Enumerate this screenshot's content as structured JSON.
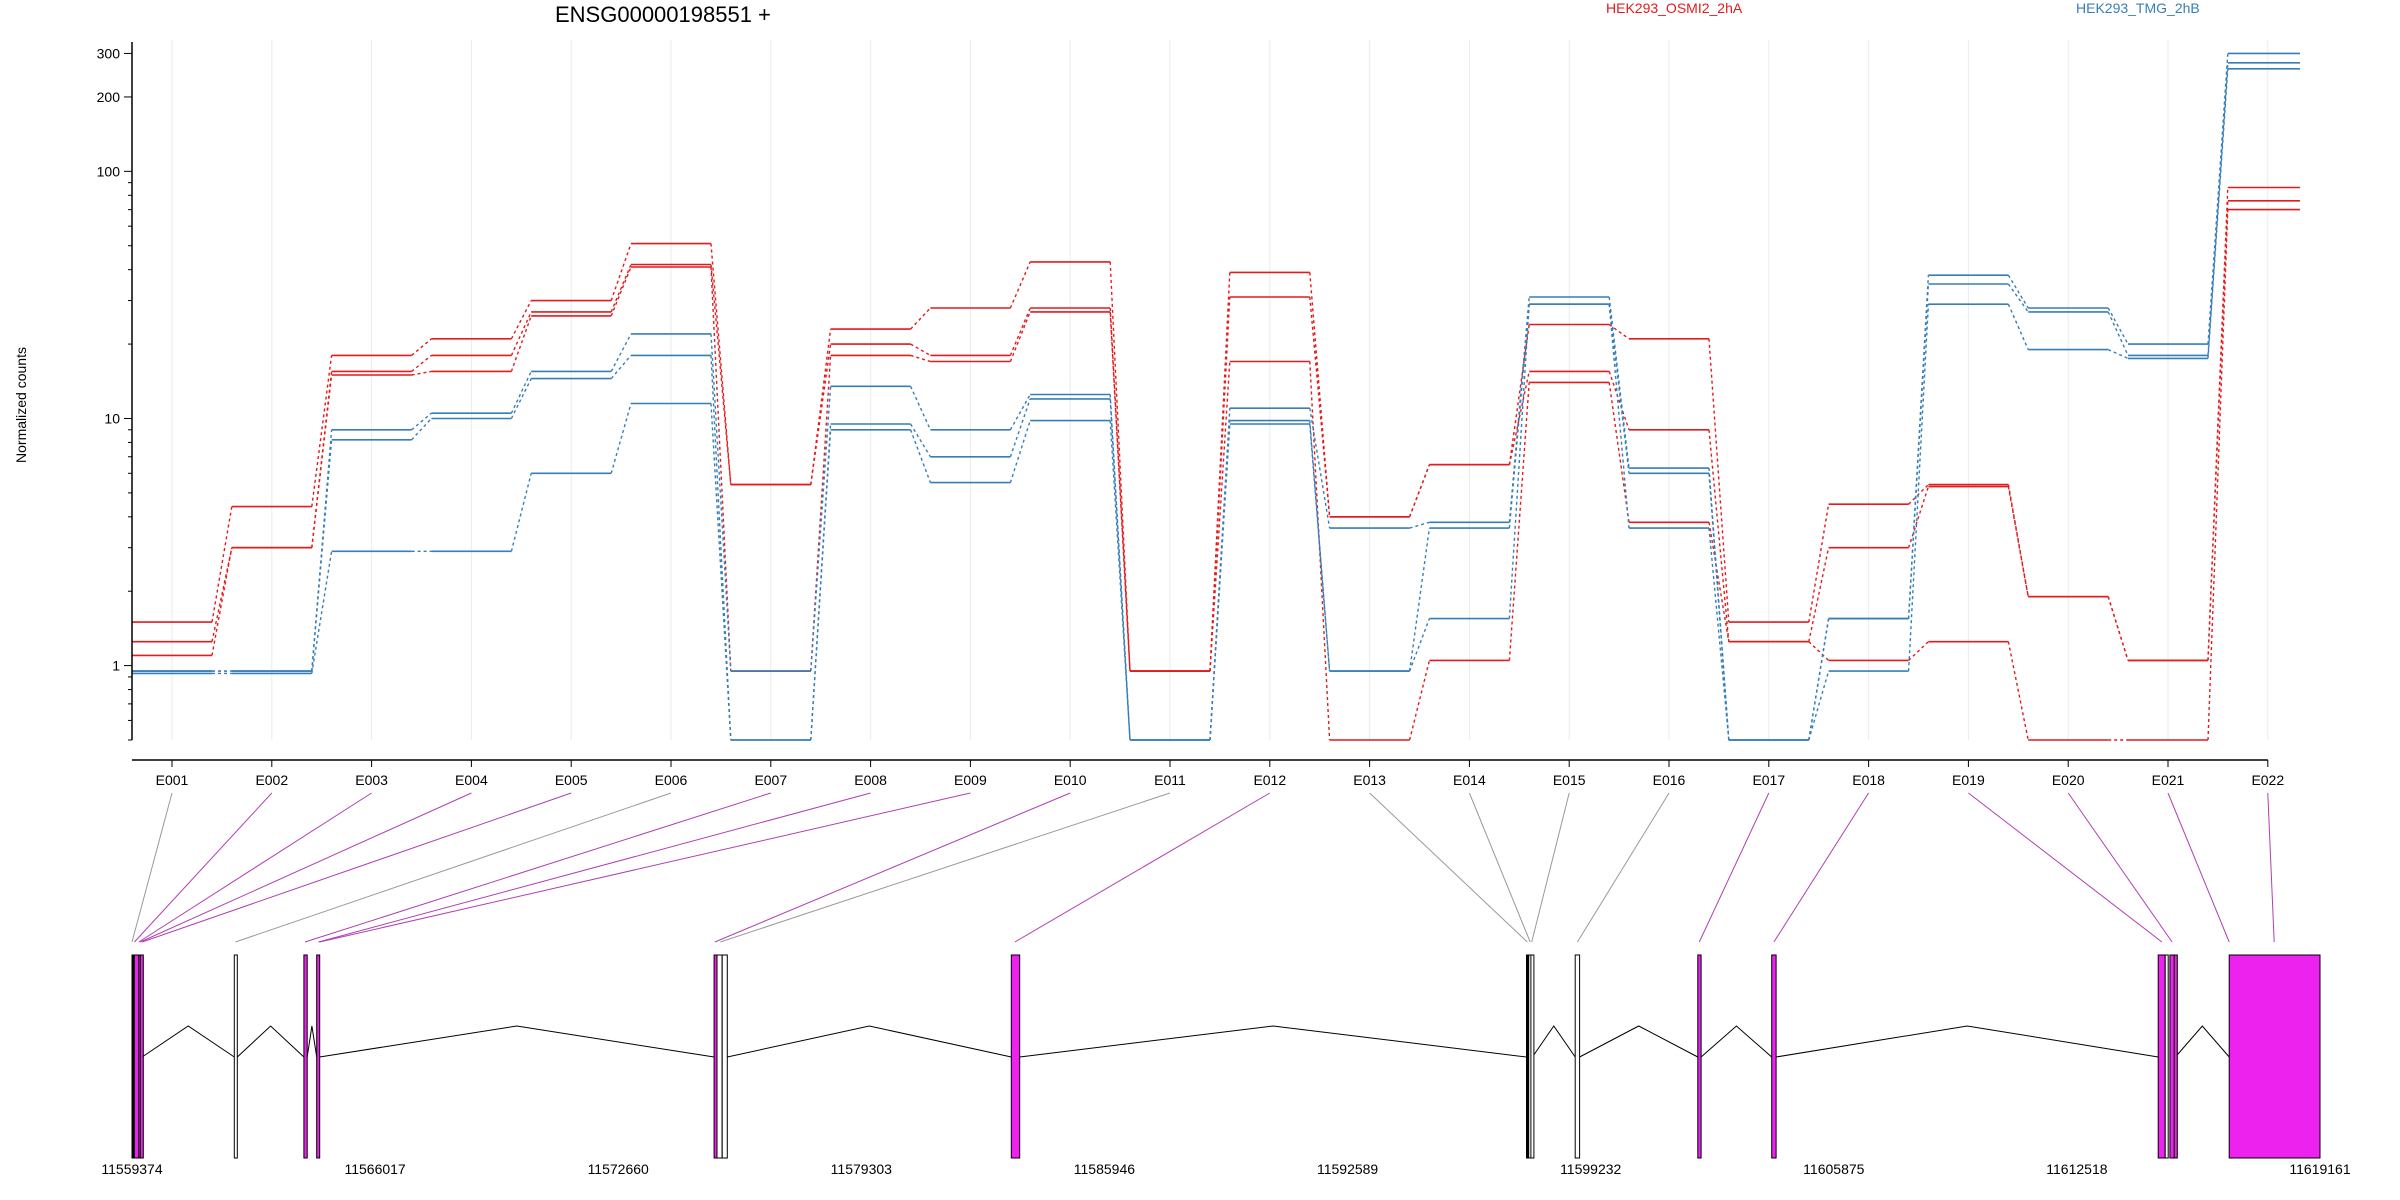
{
  "chart_data": {
    "type": "line",
    "title": "ENSG00000198551 +",
    "ylabel": "Normalized counts",
    "yscale": "log",
    "ylim": [
      0.5,
      340
    ],
    "yticks": [
      1,
      10,
      100,
      200,
      300
    ],
    "grid": "vertical",
    "categories": [
      "E001",
      "E002",
      "E003",
      "E004",
      "E005",
      "E006",
      "E007",
      "E008",
      "E009",
      "E010",
      "E011",
      "E012",
      "E013",
      "E014",
      "E015",
      "E016",
      "E017",
      "E018",
      "E019",
      "E020",
      "E021",
      "E022"
    ],
    "legend": [
      {
        "label": "HEK293_OSMI2_2hA",
        "color": "#e41a1c"
      },
      {
        "label": "HEK293_TMG_2hB",
        "color": "#377eb8"
      }
    ],
    "series": [
      {
        "color": "#e41a1c",
        "values": [
          1.5,
          4.4,
          18,
          21,
          30,
          51,
          5.4,
          23,
          28,
          43,
          0.95,
          39,
          4.0,
          6.5,
          24,
          21,
          1.5,
          4.5,
          5.4,
          1.9,
          1.05,
          86
        ]
      },
      {
        "color": "#e41a1c",
        "values": [
          1.25,
          3.0,
          15.5,
          18,
          27,
          42,
          5.4,
          20,
          18,
          28,
          0.95,
          31,
          4.0,
          6.5,
          15.5,
          9.0,
          1.25,
          3.0,
          5.3,
          1.9,
          1.05,
          76
        ]
      },
      {
        "color": "#e41a1c",
        "values": [
          1.1,
          3.0,
          15,
          15.5,
          26,
          41,
          0.95,
          18,
          17,
          27,
          0.95,
          17,
          0.5,
          1.05,
          14,
          3.8,
          1.25,
          1.05,
          1.25,
          0.5,
          0.5,
          70
        ]
      },
      {
        "color": "#377eb8",
        "values": [
          0.95,
          0.95,
          9.0,
          10.5,
          15.5,
          22,
          0.95,
          13.5,
          9.0,
          12.5,
          0.5,
          11,
          3.6,
          3.8,
          31,
          6.3,
          0.5,
          1.55,
          38,
          28,
          20,
          300
        ]
      },
      {
        "color": "#377eb8",
        "values": [
          0.95,
          0.95,
          8.2,
          10,
          14.5,
          18,
          0.5,
          9.5,
          7.0,
          12,
          0.5,
          9.8,
          0.95,
          3.6,
          29,
          6.0,
          0.5,
          1.55,
          35,
          27,
          18,
          275
        ]
      },
      {
        "color": "#377eb8",
        "values": [
          0.93,
          0.93,
          2.9,
          2.9,
          6.0,
          11.5,
          0.5,
          9.0,
          5.5,
          9.8,
          0.5,
          9.5,
          0.95,
          1.55,
          29,
          3.6,
          0.5,
          0.95,
          29,
          19,
          17.5,
          260
        ]
      }
    ],
    "gene_model": {
      "xlim": [
        11559374,
        11619161
      ],
      "xticks": [
        "11559374",
        "11566017",
        "11572660",
        "11579303",
        "11585946",
        "11592589",
        "11599232",
        "11605875",
        "11612518",
        "11619161"
      ],
      "features": [
        {
          "exon": "E001",
          "start": 11559374,
          "end": 11559440,
          "fill": "#000000"
        },
        {
          "exon": "E002",
          "start": 11559440,
          "end": 11559560,
          "fill": "#ee22ee"
        },
        {
          "exon": "E003",
          "start": 11559560,
          "end": 11559600,
          "fill": "#ee22ee"
        },
        {
          "exon": "E004",
          "start": 11559600,
          "end": 11559650,
          "fill": "#ee22ee"
        },
        {
          "exon": "E005",
          "start": 11562170,
          "end": 11562250,
          "fill": "#ffffff"
        },
        {
          "exon": "E006",
          "start": 11564070,
          "end": 11564160,
          "fill": "#ee22ee"
        },
        {
          "exon": "E007",
          "start": 11564420,
          "end": 11564500,
          "fill": "#ee22ee"
        },
        {
          "exon": "E008",
          "start": 11575280,
          "end": 11575360,
          "fill": "#ee22ee"
        },
        {
          "exon": "E009",
          "start": 11575360,
          "end": 11575500,
          "fill": "#ffffff"
        },
        {
          "exon": "E010",
          "start": 11575500,
          "end": 11575640,
          "fill": "#ffffff"
        },
        {
          "exon": "E011",
          "start": 11583400,
          "end": 11583630,
          "fill": "#ee22ee"
        },
        {
          "exon": "E012",
          "start": 11597480,
          "end": 11597540,
          "fill": "#000000"
        },
        {
          "exon": "E013",
          "start": 11597540,
          "end": 11597600,
          "fill": "#ffffff"
        },
        {
          "exon": "E014",
          "start": 11597600,
          "end": 11597640,
          "fill": "#ffffff"
        },
        {
          "exon": "E015",
          "start": 11598810,
          "end": 11598930,
          "fill": "#ffffff"
        },
        {
          "exon": "E016",
          "start": 11602160,
          "end": 11602250,
          "fill": "#ee22ee"
        },
        {
          "exon": "E017",
          "start": 11604180,
          "end": 11604300,
          "fill": "#ee22ee"
        },
        {
          "exon": "E018",
          "start": 11614740,
          "end": 11614930,
          "fill": "#ee22ee"
        },
        {
          "exon": "E019",
          "start": 11614930,
          "end": 11614980,
          "fill": "#ffffff"
        },
        {
          "exon": "E020",
          "start": 11615060,
          "end": 11615180,
          "fill": "#ee22ee"
        },
        {
          "exon": "E021",
          "start": 11615180,
          "end": 11615210,
          "fill": "#ee22ee"
        },
        {
          "exon": "E022",
          "start": 11616680,
          "end": 11619161,
          "fill": "#ee22ee"
        }
      ],
      "connectors": [
        {
          "exon": "E001",
          "pos": 11559374,
          "color": "#999999"
        },
        {
          "exon": "E002",
          "pos": 11559440,
          "color": "#b040b0"
        },
        {
          "exon": "E003",
          "pos": 11559560,
          "color": "#b040b0"
        },
        {
          "exon": "E004",
          "pos": 11559600,
          "color": "#b040b0"
        },
        {
          "exon": "E005",
          "pos": 11559650,
          "color": "#b040b0"
        },
        {
          "exon": "E006",
          "pos": 11562200,
          "color": "#999999"
        },
        {
          "exon": "E007",
          "pos": 11564100,
          "color": "#b040b0"
        },
        {
          "exon": "E008",
          "pos": 11564470,
          "color": "#b040b0"
        },
        {
          "exon": "E009",
          "pos": 11564500,
          "color": "#b040b0"
        },
        {
          "exon": "E010",
          "pos": 11575300,
          "color": "#b040b0"
        },
        {
          "exon": "E011",
          "pos": 11575450,
          "color": "#999999"
        },
        {
          "exon": "E012",
          "pos": 11583500,
          "color": "#b040b0"
        },
        {
          "exon": "E013",
          "pos": 11597500,
          "color": "#999999"
        },
        {
          "exon": "E014",
          "pos": 11597580,
          "color": "#999999"
        },
        {
          "exon": "E015",
          "pos": 11597620,
          "color": "#999999"
        },
        {
          "exon": "E016",
          "pos": 11598870,
          "color": "#999999"
        },
        {
          "exon": "E017",
          "pos": 11602200,
          "color": "#b040b0"
        },
        {
          "exon": "E018",
          "pos": 11604240,
          "color": "#b040b0"
        },
        {
          "exon": "E019",
          "pos": 11614840,
          "color": "#b040b0"
        },
        {
          "exon": "E020",
          "pos": 11615120,
          "color": "#b040b0"
        },
        {
          "exon": "E021",
          "pos": 11616680,
          "color": "#b040b0"
        },
        {
          "exon": "E022",
          "pos": 11617910,
          "color": "#b040b0"
        }
      ]
    }
  }
}
